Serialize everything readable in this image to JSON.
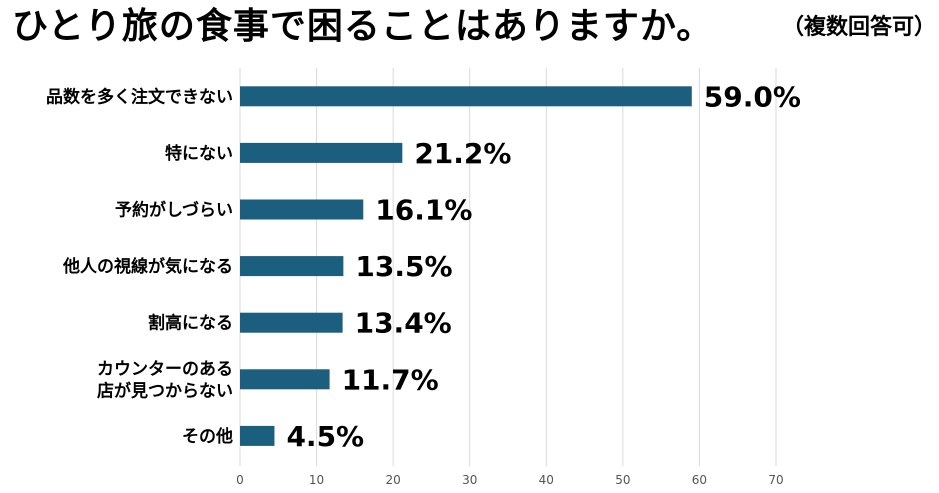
{
  "title": "ひとり旅の食事で困ることはありますか。",
  "subtitle": "（複数回答可）",
  "chart_data": {
    "type": "bar",
    "orientation": "horizontal",
    "title": "ひとり旅の食事で困ることはありますか。",
    "subtitle": "（複数回答可）",
    "categories": [
      [
        "品数を多く注文できない"
      ],
      [
        "特にない"
      ],
      [
        "予約がしづらい"
      ],
      [
        "他人の視線が気になる"
      ],
      [
        "割高になる"
      ],
      [
        "カウンターのある",
        "店が見つからない"
      ],
      [
        "その他"
      ]
    ],
    "values": [
      59.0,
      21.2,
      16.1,
      13.5,
      13.4,
      11.7,
      4.5
    ],
    "value_labels": [
      "59.0%",
      "21.2%",
      "16.1%",
      "13.5%",
      "13.4%",
      "11.7%",
      "4.5%"
    ],
    "xlim": [
      0,
      70
    ],
    "x_ticks": [
      "0",
      "10",
      "20",
      "30",
      "40",
      "50",
      "60",
      "70"
    ],
    "bar_color": "#1b5e7e",
    "grid": true,
    "legend": "none"
  }
}
